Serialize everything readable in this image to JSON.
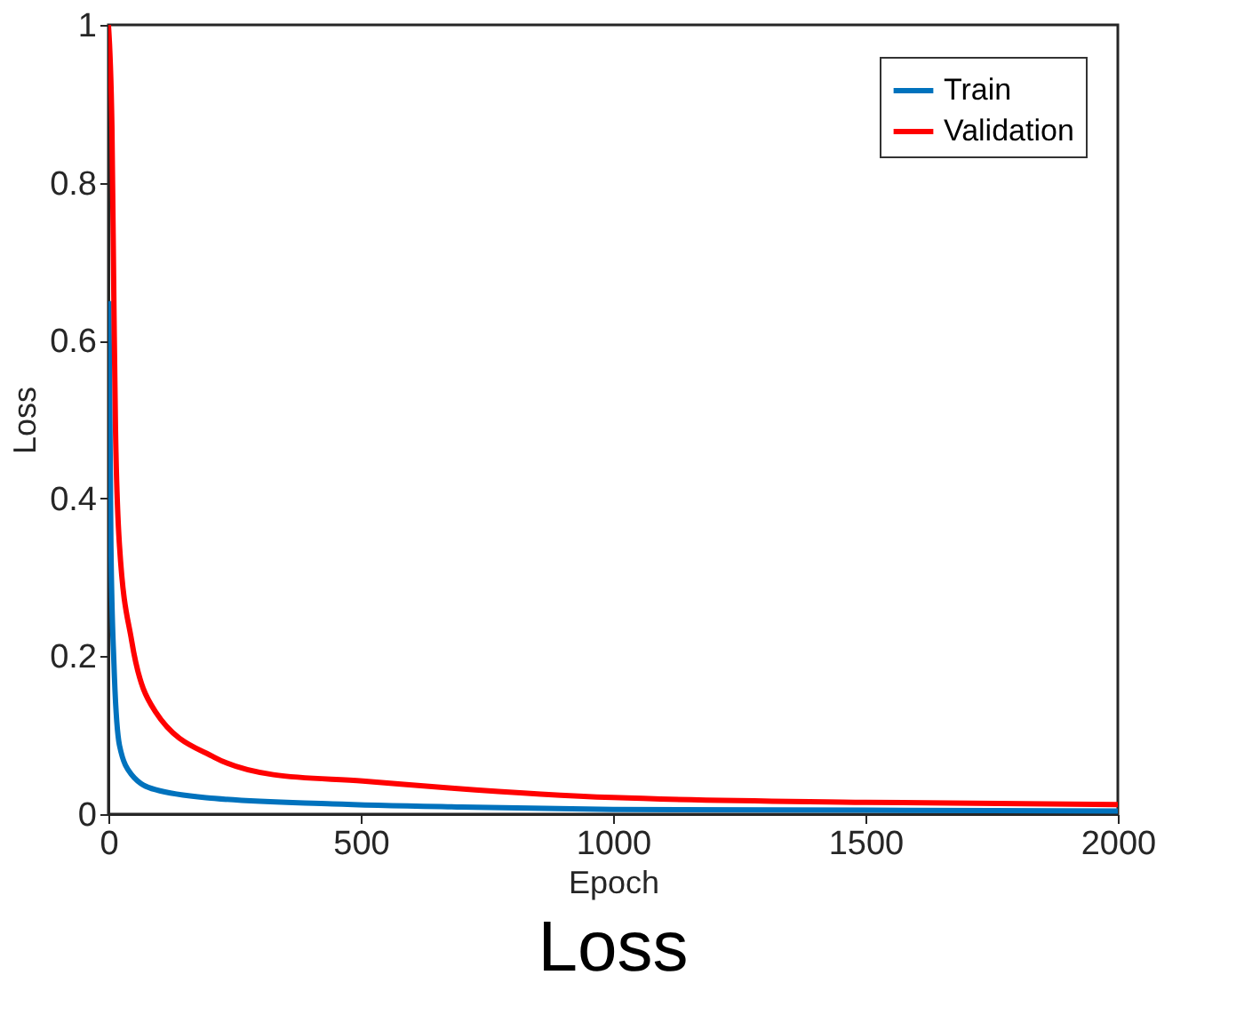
{
  "chart_data": {
    "type": "line",
    "title": "Loss",
    "xlabel": "Epoch",
    "ylabel": "Loss",
    "xlim": [
      0,
      2000
    ],
    "xticks": [
      0,
      500,
      1000,
      1500,
      2000
    ],
    "ylim": [
      0,
      1
    ],
    "yticks": [
      0,
      0.2,
      0.4,
      0.6,
      0.8,
      1
    ],
    "grid": false,
    "legend": "top right",
    "marker": "none",
    "line_style": "solid",
    "series": [
      {
        "name": "Train",
        "color": "#0072bd",
        "x": [
          1,
          5,
          11,
          22,
          46,
          93,
          210,
          444,
          700,
          1000,
          1500,
          2000
        ],
        "values": [
          0.65,
          0.34,
          0.19,
          0.087,
          0.05,
          0.031,
          0.02,
          0.013,
          0.009,
          0.006,
          0.005,
          0.004
        ]
      },
      {
        "name": "Validation",
        "color": "#ff0000",
        "x": [
          0,
          7,
          11,
          14,
          22,
          46,
          93,
          210,
          327,
          504,
          680,
          1000,
          1500,
          2000
        ],
        "values": [
          1,
          0.87,
          0.64,
          0.49,
          0.34,
          0.22,
          0.13,
          0.072,
          0.05,
          0.042,
          0.033,
          0.021,
          0.015,
          0.012
        ]
      }
    ]
  }
}
